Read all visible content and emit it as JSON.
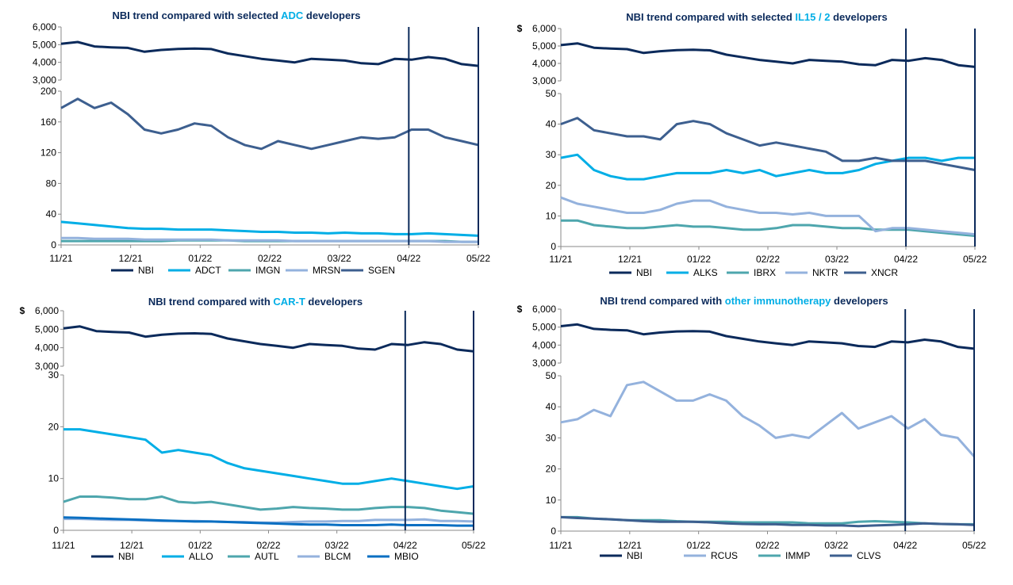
{
  "colors": {
    "navy": "#0b2a5b",
    "cyan": "#00aee6",
    "teal": "#4ea6ad",
    "lightblue": "#94b2dd",
    "midblue": "#3d5f8f",
    "blue": "#0a6fc2",
    "divider": "#0b2a5b"
  },
  "chart_data": [
    {
      "type": "line",
      "title_parts": [
        "NBI trend compared with selected ",
        "ADC",
        " developers"
      ],
      "top_panel": {
        "y_ticks": [
          "6,000",
          "5,000",
          "4,000",
          "3,000"
        ],
        "ylim": [
          3000,
          6000
        ],
        "currency": ""
      },
      "bottom_panel": {
        "y_ticks": [
          "200",
          "160",
          "120",
          "80",
          "40",
          "0"
        ],
        "ylim": [
          0,
          200
        ]
      },
      "x_ticks": [
        "11/21",
        "12/21",
        "01/22",
        "02/22",
        "03/22",
        "04/22",
        "05/22"
      ],
      "dividers": [
        "04/22",
        "05/22"
      ],
      "series": [
        {
          "name": "NBI",
          "panel": "top",
          "color": "navy",
          "values": [
            5050,
            5150,
            4900,
            4850,
            4820,
            4600,
            4700,
            4760,
            4780,
            4750,
            4500,
            4350,
            4200,
            4100,
            4000,
            4200,
            4150,
            4100,
            3950,
            3900,
            4200,
            4150,
            4300,
            4200,
            3900,
            3800
          ]
        },
        {
          "name": "ADCT",
          "panel": "bottom",
          "color": "cyan",
          "values": [
            30,
            28,
            26,
            24,
            22,
            21,
            21,
            20,
            20,
            20,
            19,
            18,
            17,
            17,
            16,
            16,
            15,
            16,
            15,
            15,
            14,
            14,
            15,
            14,
            13,
            12
          ]
        },
        {
          "name": "IMGN",
          "panel": "bottom",
          "color": "teal",
          "values": [
            5,
            5,
            5,
            5,
            5,
            5,
            5,
            6,
            6,
            6,
            6,
            5,
            5,
            5,
            5,
            5,
            5,
            5,
            5,
            5,
            5,
            5,
            5,
            5,
            4,
            4
          ]
        },
        {
          "name": "MRSN",
          "panel": "bottom",
          "color": "lightblue",
          "values": [
            9,
            9,
            8,
            8,
            8,
            7,
            7,
            7,
            7,
            7,
            6,
            6,
            6,
            6,
            5,
            5,
            5,
            5,
            5,
            5,
            5,
            5,
            5,
            4,
            4,
            4
          ]
        },
        {
          "name": "SGEN",
          "panel": "bottom",
          "color": "midblue",
          "values": [
            178,
            190,
            178,
            185,
            170,
            150,
            145,
            150,
            158,
            155,
            140,
            130,
            125,
            135,
            130,
            125,
            130,
            135,
            140,
            138,
            140,
            150,
            150,
            140,
            135,
            130
          ]
        }
      ]
    },
    {
      "type": "line",
      "title_parts": [
        "NBI trend compared with selected ",
        "IL15 / 2",
        " developers"
      ],
      "top_panel": {
        "y_ticks": [
          "6,000",
          "5,000",
          "4,000",
          "3,000"
        ],
        "ylim": [
          3000,
          6000
        ],
        "currency": "$"
      },
      "bottom_panel": {
        "y_ticks": [
          "50",
          "40",
          "30",
          "20",
          "10",
          "0"
        ],
        "ylim": [
          0,
          50
        ]
      },
      "x_ticks": [
        "11/21",
        "12/21",
        "01/22",
        "02/22",
        "03/22",
        "04/22",
        "05/22"
      ],
      "dividers": [
        "04/22",
        "05/22"
      ],
      "series": [
        {
          "name": "NBI",
          "panel": "top",
          "color": "navy",
          "values": [
            5050,
            5150,
            4900,
            4850,
            4820,
            4600,
            4700,
            4760,
            4780,
            4750,
            4500,
            4350,
            4200,
            4100,
            4000,
            4200,
            4150,
            4100,
            3950,
            3900,
            4200,
            4150,
            4300,
            4200,
            3900,
            3800
          ]
        },
        {
          "name": "ALKS",
          "panel": "bottom",
          "color": "cyan",
          "values": [
            29,
            30,
            25,
            23,
            22,
            22,
            23,
            24,
            24,
            24,
            25,
            24,
            25,
            23,
            24,
            25,
            24,
            24,
            25,
            27,
            28,
            29,
            29,
            28,
            29,
            29
          ]
        },
        {
          "name": "IBRX",
          "panel": "bottom",
          "color": "teal",
          "values": [
            8.5,
            8.5,
            7,
            6.5,
            6,
            6,
            6.5,
            7,
            6.5,
            6.5,
            6,
            5.5,
            5.5,
            6,
            7,
            7,
            6.5,
            6,
            6,
            5.5,
            5.5,
            5.5,
            5,
            4.5,
            4,
            3.5
          ]
        },
        {
          "name": "NKTR",
          "panel": "bottom",
          "color": "lightblue",
          "values": [
            16,
            14,
            13,
            12,
            11,
            11,
            12,
            14,
            15,
            15,
            13,
            12,
            11,
            11,
            10.5,
            11,
            10,
            10,
            10,
            5,
            6,
            6,
            5.5,
            5,
            4.5,
            4
          ]
        },
        {
          "name": "XNCR",
          "panel": "bottom",
          "color": "midblue",
          "values": [
            40,
            42,
            38,
            37,
            36,
            36,
            35,
            40,
            41,
            40,
            37,
            35,
            33,
            34,
            33,
            32,
            31,
            28,
            28,
            29,
            28,
            28,
            28,
            27,
            26,
            25
          ]
        }
      ]
    },
    {
      "type": "line",
      "title_parts": [
        "NBI trend compared with ",
        "CAR-T",
        " developers"
      ],
      "top_panel": {
        "y_ticks": [
          "6,000",
          "5,000",
          "4,000",
          "3,000"
        ],
        "ylim": [
          3000,
          6000
        ],
        "currency": "$"
      },
      "bottom_panel": {
        "y_ticks": [
          "30",
          "20",
          "10",
          "0"
        ],
        "ylim": [
          0,
          30
        ]
      },
      "x_ticks": [
        "11/21",
        "12/21",
        "01/22",
        "02/22",
        "03/22",
        "04/22",
        "05/22"
      ],
      "dividers": [
        "04/22",
        "05/22"
      ],
      "series": [
        {
          "name": "NBI",
          "panel": "top",
          "color": "navy",
          "values": [
            5050,
            5150,
            4900,
            4850,
            4820,
            4600,
            4700,
            4760,
            4780,
            4750,
            4500,
            4350,
            4200,
            4100,
            4000,
            4200,
            4150,
            4100,
            3950,
            3900,
            4200,
            4150,
            4300,
            4200,
            3900,
            3800
          ]
        },
        {
          "name": "ALLO",
          "panel": "bottom",
          "color": "cyan",
          "values": [
            19.5,
            19.5,
            19,
            18.5,
            18,
            17.5,
            15,
            15.5,
            15,
            14.5,
            13,
            12,
            11.5,
            11,
            10.5,
            10,
            9.5,
            9,
            9,
            9.5,
            10,
            9.5,
            9,
            8.5,
            8,
            8.5
          ]
        },
        {
          "name": "AUTL",
          "panel": "bottom",
          "color": "teal",
          "values": [
            5.5,
            6.5,
            6.5,
            6.3,
            6,
            6,
            6.5,
            5.5,
            5.3,
            5.5,
            5,
            4.5,
            4,
            4.2,
            4.5,
            4.3,
            4.2,
            4,
            4,
            4.3,
            4.5,
            4.5,
            4.3,
            3.8,
            3.5,
            3.2
          ]
        },
        {
          "name": "BLCM",
          "panel": "bottom",
          "color": "lightblue",
          "values": [
            2.2,
            2.2,
            2.1,
            2,
            2,
            1.9,
            1.8,
            1.8,
            1.8,
            1.7,
            1.6,
            1.6,
            1.5,
            1.5,
            1.6,
            1.7,
            1.7,
            1.8,
            1.8,
            2,
            2,
            2,
            2.1,
            1.8,
            1.8,
            1.7
          ]
        },
        {
          "name": "MBIO",
          "panel": "bottom",
          "color": "blue",
          "values": [
            2.5,
            2.4,
            2.3,
            2.2,
            2.1,
            2,
            1.9,
            1.8,
            1.7,
            1.7,
            1.6,
            1.5,
            1.4,
            1.3,
            1.2,
            1.1,
            1.1,
            1,
            1,
            1,
            1.1,
            1,
            1,
            1,
            0.9,
            0.9
          ]
        }
      ]
    },
    {
      "type": "line",
      "title_parts": [
        "NBI trend compared with ",
        "other immunotherapy",
        " developers"
      ],
      "top_panel": {
        "y_ticks": [
          "6,000",
          "5,000",
          "4,000",
          "3,000"
        ],
        "ylim": [
          3000,
          6000
        ],
        "currency": "$"
      },
      "bottom_panel": {
        "y_ticks": [
          "50",
          "40",
          "30",
          "20",
          "10",
          "0"
        ],
        "ylim": [
          0,
          50
        ]
      },
      "x_ticks": [
        "11/21",
        "12/21",
        "01/22",
        "02/22",
        "03/22",
        "04/22",
        "05/22"
      ],
      "dividers": [
        "04/22",
        "05/22"
      ],
      "series": [
        {
          "name": "NBI",
          "panel": "top",
          "color": "navy",
          "values": [
            5050,
            5150,
            4900,
            4850,
            4820,
            4600,
            4700,
            4760,
            4780,
            4750,
            4500,
            4350,
            4200,
            4100,
            4000,
            4200,
            4150,
            4100,
            3950,
            3900,
            4200,
            4150,
            4300,
            4200,
            3900,
            3800
          ]
        },
        {
          "name": "RCUS",
          "panel": "bottom",
          "color": "lightblue",
          "values": [
            35,
            36,
            39,
            37,
            47,
            48,
            45,
            42,
            42,
            44,
            42,
            37,
            34,
            30,
            31,
            30,
            34,
            38,
            33,
            35,
            37,
            33,
            36,
            31,
            30,
            24
          ]
        },
        {
          "name": "IMMP",
          "panel": "bottom",
          "color": "teal",
          "values": [
            4.5,
            4.5,
            4,
            3.8,
            3.5,
            3.5,
            3.5,
            3.2,
            3,
            3,
            3,
            2.8,
            2.8,
            2.8,
            2.8,
            2.5,
            2.5,
            2.5,
            3,
            3.2,
            3,
            2.8,
            2.5,
            2.3,
            2.2,
            2.2
          ]
        },
        {
          "name": "CLVS",
          "panel": "bottom",
          "color": "midblue",
          "values": [
            4.5,
            4.2,
            4,
            3.8,
            3.5,
            3.2,
            3,
            3,
            3,
            2.8,
            2.5,
            2.3,
            2.2,
            2.2,
            2,
            2,
            1.8,
            1.8,
            1.6,
            1.8,
            2,
            2.2,
            2.5,
            2.3,
            2.2,
            2
          ]
        }
      ]
    }
  ]
}
